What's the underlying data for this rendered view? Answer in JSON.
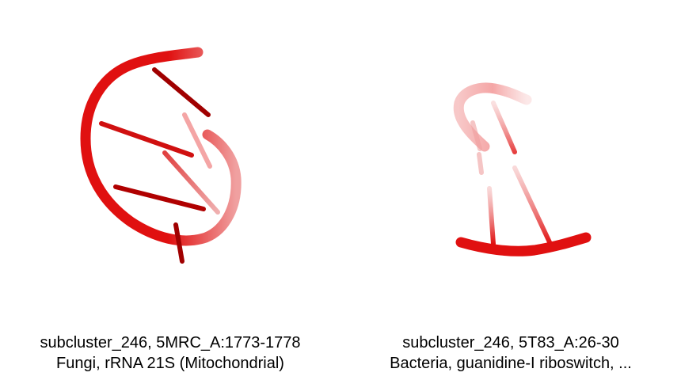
{
  "panels": [
    {
      "caption_line1": "subcluster_246, 5MRC_A:1773-1778",
      "caption_line2": "Fungi, rRNA 21S (Mitochondrial)"
    },
    {
      "caption_line1": "subcluster_246, 5T83_A:26-30",
      "caption_line2": "Bacteria, guanidine-I riboswitch, ..."
    }
  ],
  "colors": {
    "backbone": "#e01010",
    "backbone_dark": "#a00000",
    "base": "#c00000",
    "background": "#ffffff"
  }
}
